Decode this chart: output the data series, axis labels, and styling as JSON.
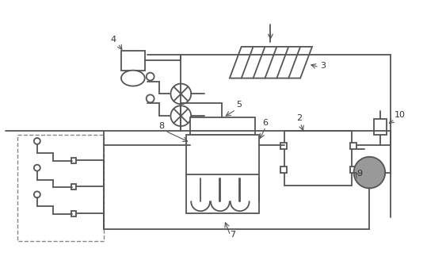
{
  "bg_color": "#ffffff",
  "lc": "#555555",
  "dc": "#888888",
  "tc": "#333333",
  "figsize": [
    5.39,
    3.38
  ],
  "dpi": 100
}
